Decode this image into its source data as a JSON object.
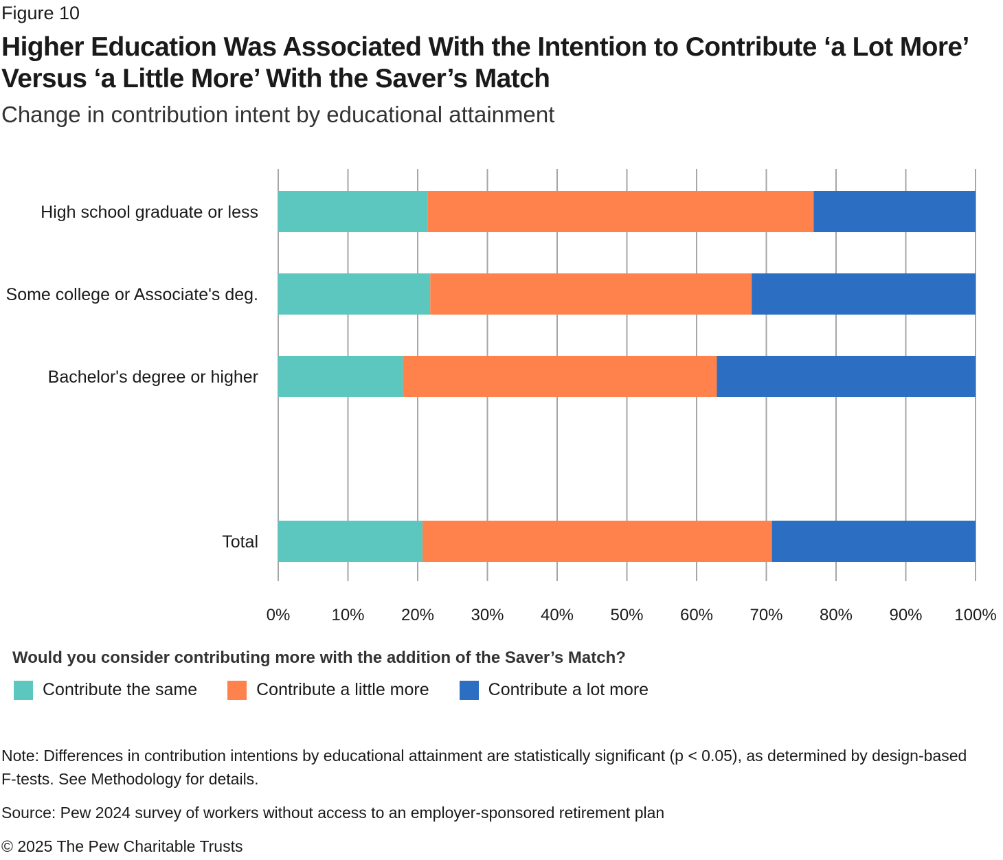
{
  "figure_label": "Figure 10",
  "title": "Higher Education Was Associated With the Intention to Contribute ‘a Lot More’ Versus ‘a Little More’ With the Saver’s Match",
  "subtitle": "Change in contribution intent by educational attainment",
  "chart_data": {
    "type": "bar",
    "orientation": "horizontal",
    "stacked": true,
    "categories": [
      "High school graduate or less",
      "Some college or Associate's deg.",
      "Bachelor's degree or higher",
      "Total"
    ],
    "series": [
      {
        "name": "Contribute the same",
        "values": [
          21.4,
          21.8,
          17.9,
          20.7
        ],
        "color": "#5BC7BE"
      },
      {
        "name": "Contribute a little more",
        "values": [
          55.4,
          46.1,
          45.0,
          50.1
        ],
        "color": "#FF824C"
      },
      {
        "name": "Contribute a lot more",
        "values": [
          23.2,
          32.1,
          37.1,
          29.2
        ],
        "color": "#2C6EC2"
      }
    ],
    "xlim": [
      0,
      100
    ],
    "xticks": [
      "0%",
      "10%",
      "20%",
      "30%",
      "40%",
      "50%",
      "60%",
      "70%",
      "80%",
      "90%",
      "100%"
    ],
    "grid": true
  },
  "legend": {
    "title": "Would you consider contributing more with the addition of the Saver’s Match?"
  },
  "note": "Note: Differences in contribution intentions by educational attainment are statistically significant (p < 0.05), as determined by design-based F-tests. See Methodology for details.",
  "source": "Source: Pew 2024 survey of workers without access to an employer-sponsored retirement plan",
  "copyright": "© 2025 The Pew Charitable Trusts"
}
